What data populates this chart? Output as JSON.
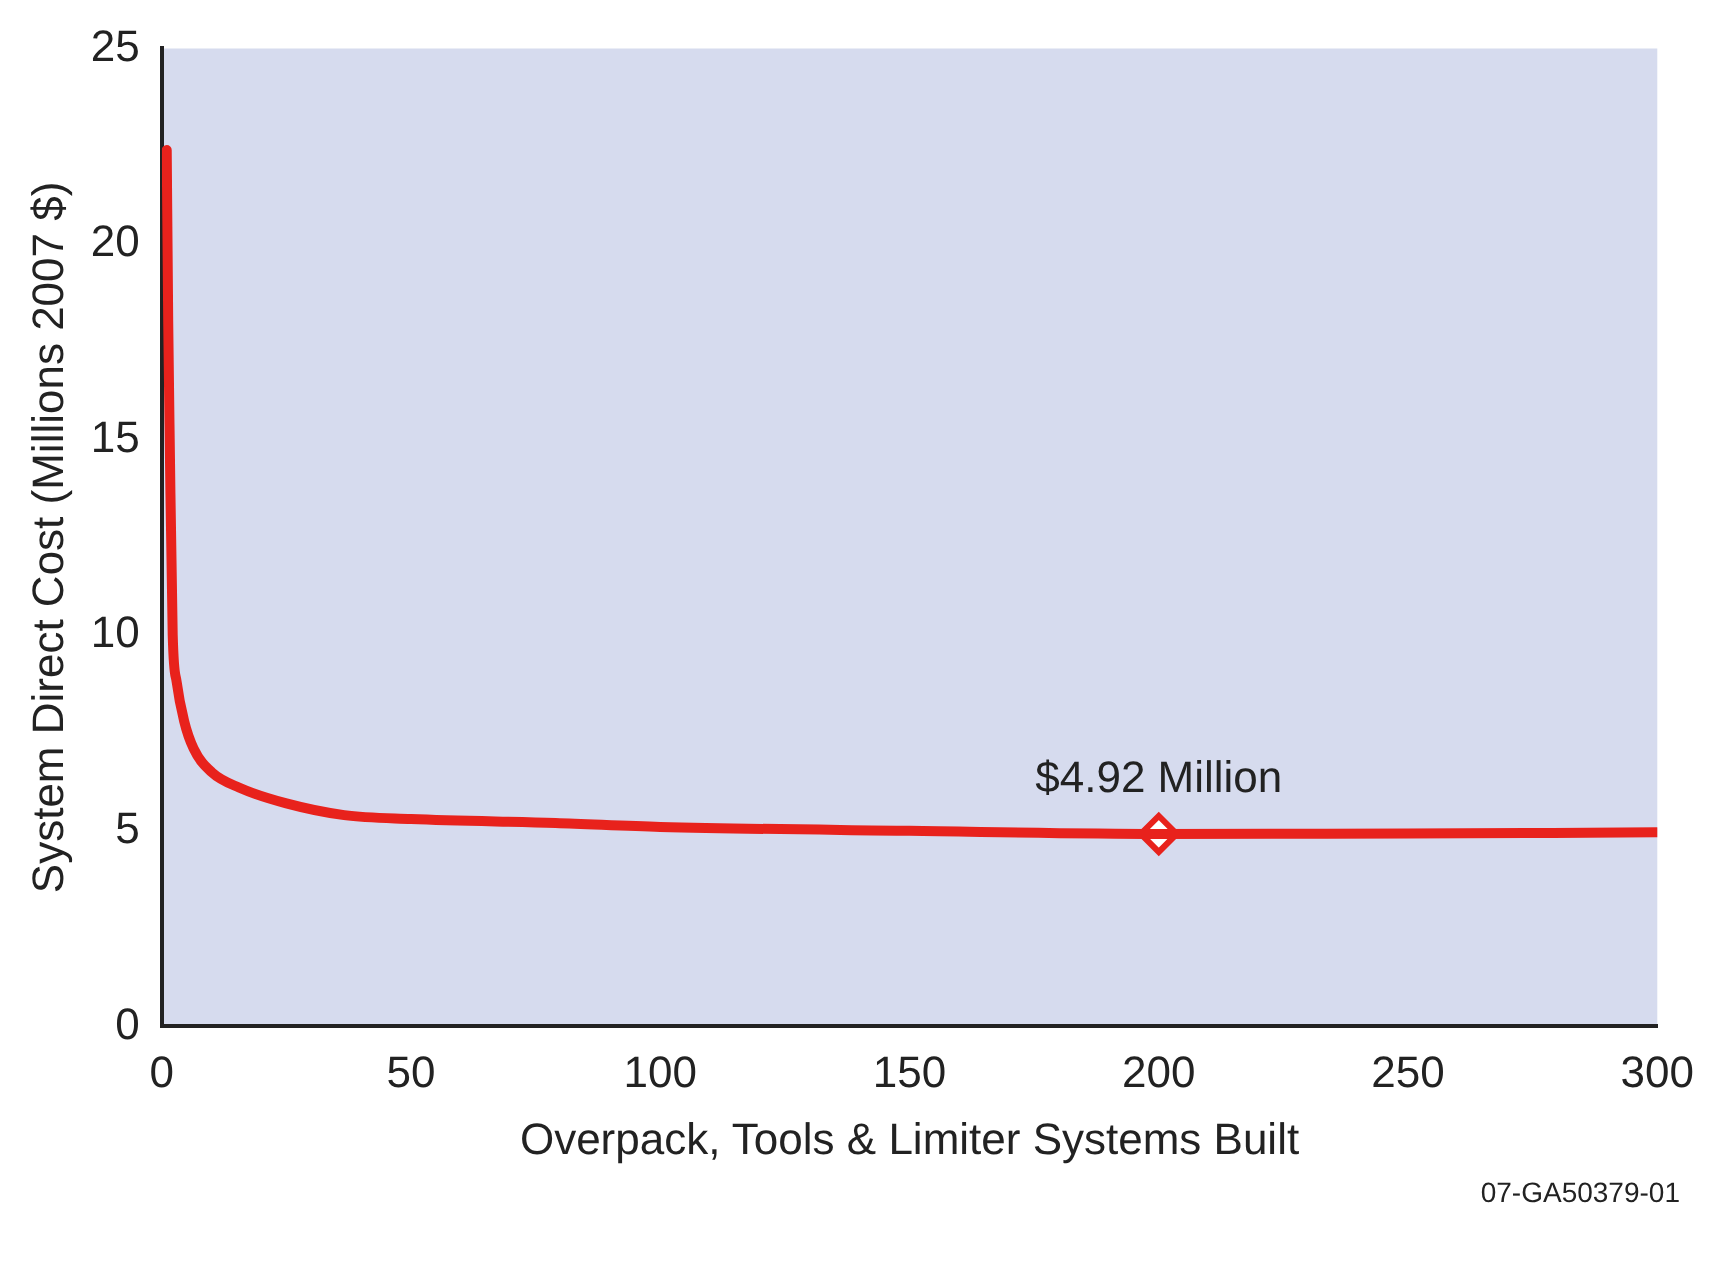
{
  "chart_data": {
    "type": "line",
    "xlabel": "Overpack, Tools & Limiter Systems Built",
    "ylabel": "System Direct Cost (Millions 2007 $)",
    "xlim": [
      0,
      300
    ],
    "xticks": [
      0,
      50,
      100,
      150,
      200,
      250,
      300
    ],
    "ylim": [
      0,
      25
    ],
    "yticks": [
      0,
      5,
      10,
      15,
      20,
      25
    ],
    "grid": false,
    "legend": false,
    "series": [
      {
        "color": "#e8221c",
        "marker": "none",
        "x": [
          1,
          1.3,
          1.6,
          2.2,
          3,
          4.5,
          6.4,
          10,
          15.6,
          25,
          36.6,
          50,
          79,
          100,
          150,
          200,
          250,
          300
        ],
        "values": [
          22.4,
          18,
          15,
          10,
          8.8,
          7.8,
          7.1,
          6.5,
          6.1,
          5.7,
          5.4,
          5.3,
          5.2,
          5.1,
          5.0,
          4.92,
          4.93,
          4.96
        ]
      },
      {
        "type": "scatter",
        "color": "#e8221c",
        "marker": "diamond",
        "x": [
          200
        ],
        "values": [
          4.92
        ]
      }
    ],
    "annotations": [
      {
        "text": "$4.92 Million",
        "x": 200,
        "y": 4.92
      },
      "07-GA50379-01"
    ]
  }
}
